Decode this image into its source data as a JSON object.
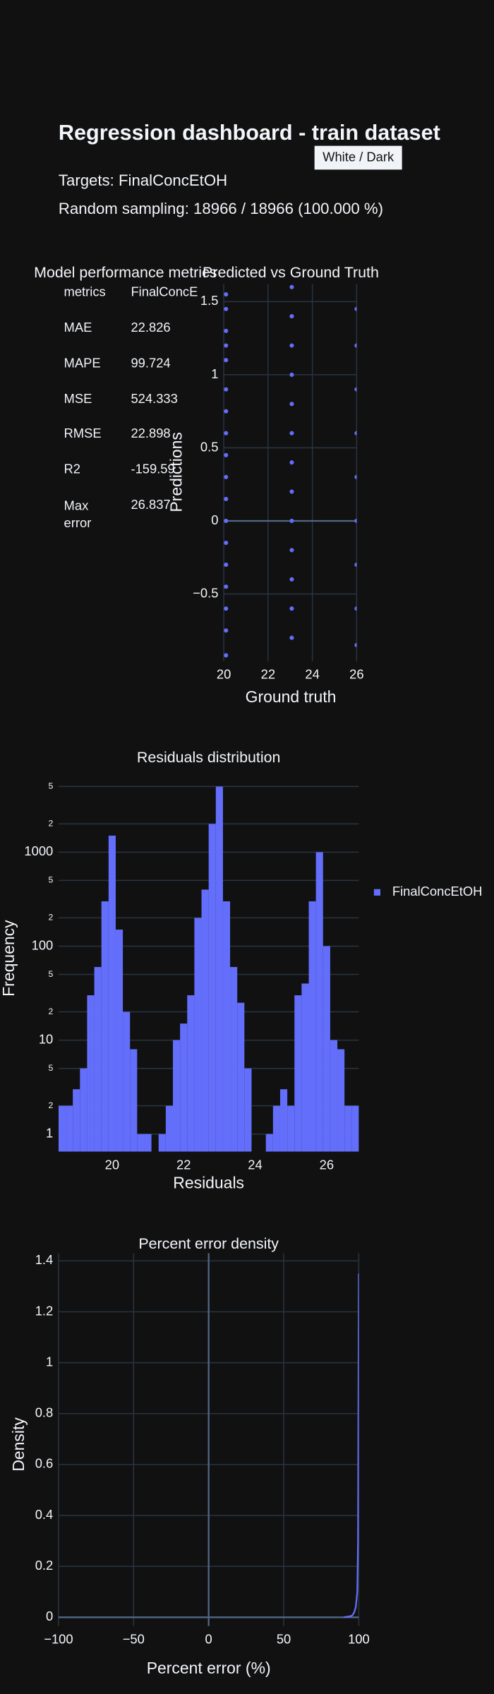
{
  "header": {
    "title": "Regression dashboard - train dataset",
    "button": "White / Dark",
    "targets": "Targets: FinalConcEtOH",
    "sampling": "Random sampling: 18966 / 18966 (100.000 %)"
  },
  "metrics_table": {
    "title": "Model performance metrics",
    "columns": [
      "metrics",
      "FinalConcE"
    ],
    "rows": [
      [
        "MAE",
        22.826
      ],
      [
        "MAPE",
        99.724
      ],
      [
        "MSE",
        524.333
      ],
      [
        "RMSE",
        22.898
      ],
      [
        "R2",
        -159.59
      ],
      [
        "Max error",
        26.837
      ]
    ]
  },
  "chart_data": [
    {
      "type": "scatter",
      "title": "Predicted vs Ground Truth",
      "x_label": "Ground truth",
      "y_label": "Predictions",
      "color": "#636efa",
      "grid": true,
      "x": [
        20.1,
        20.1,
        20.1,
        20.1,
        20.1,
        20.1,
        20.1,
        20.1,
        20.1,
        20.1,
        20.1,
        20.1,
        20.1,
        20.1,
        20.1,
        20.1,
        20.1,
        20.1,
        23.07,
        23.07,
        23.07,
        23.07,
        23.07,
        23.07,
        23.07,
        23.07,
        23.07,
        23.07,
        23.07,
        23.07,
        23.07,
        26.0,
        26.0,
        26.0,
        26.0,
        26.0,
        26.0,
        26.0,
        26.0,
        26.0
      ],
      "values": [
        1.55,
        1.45,
        1.3,
        1.2,
        1.1,
        0.9,
        0.75,
        0.6,
        0.45,
        0.3,
        0.15,
        0.0,
        -0.15,
        -0.3,
        -0.45,
        -0.6,
        -0.75,
        -0.92,
        1.6,
        1.4,
        1.2,
        1.0,
        0.8,
        0.6,
        0.4,
        0.2,
        0.0,
        -0.2,
        -0.4,
        -0.6,
        -0.8,
        1.45,
        1.2,
        0.9,
        0.6,
        0.3,
        0.0,
        -0.3,
        -0.6,
        -0.85
      ],
      "xlim": [
        20,
        26
      ],
      "xticks": [
        20,
        22,
        24,
        26
      ],
      "ylim": [
        -0.96,
        1.62
      ],
      "yticks": [
        {
          "value": -0.5,
          "label": "−0.5"
        },
        0,
        0.5,
        1,
        1.5
      ]
    },
    {
      "type": "histogram",
      "title": "Residuals distribution",
      "x_label": "Residuals",
      "y_label": "Frequency",
      "log_y": true,
      "grid": true,
      "legend": "right",
      "bins": [
        18.5,
        18.7,
        18.9,
        19.1,
        19.3,
        19.5,
        19.7,
        19.9,
        20.1,
        20.3,
        20.5,
        20.7,
        20.9,
        21.1,
        21.3,
        21.5,
        21.7,
        21.9,
        22.1,
        22.3,
        22.5,
        22.7,
        22.9,
        23.1,
        23.3,
        23.5,
        23.7,
        23.9,
        24.1,
        24.3,
        24.5,
        24.7,
        24.9,
        25.1,
        25.3,
        25.5,
        25.7,
        25.9,
        26.1,
        26.3,
        26.5,
        26.7,
        26.9
      ],
      "series": [
        {
          "name": "FinalConcEtOH",
          "color": "#636efa",
          "values": [
            2,
            2,
            3,
            5,
            30,
            60,
            300,
            1500,
            150,
            20,
            8,
            1,
            1,
            0,
            1,
            2,
            10,
            15,
            30,
            200,
            400,
            2000,
            5000,
            300,
            60,
            25,
            5,
            0,
            0,
            1,
            2,
            3,
            2,
            30,
            40,
            300,
            1000,
            100,
            10,
            8,
            2,
            2
          ]
        }
      ],
      "xlim": [
        18.5,
        26.9
      ],
      "xticks": [
        20,
        22,
        24,
        26
      ],
      "ylim": [
        0.65,
        5000
      ],
      "yticks": [
        1,
        2,
        5,
        10,
        {
          "value": 20,
          "label": "2"
        },
        {
          "value": 50,
          "label": "5"
        },
        100,
        {
          "value": 200,
          "label": "2"
        },
        {
          "value": 500,
          "label": "5"
        },
        1000,
        {
          "value": 2000,
          "label": "2"
        },
        {
          "value": 5000,
          "label": "5"
        }
      ]
    },
    {
      "type": "line",
      "title": "Percent error density",
      "x_label": "Percent error (%)",
      "y_label": "Density",
      "color": "#636efa",
      "grid": true,
      "x": [
        90,
        95,
        96,
        97,
        98,
        99,
        99.5,
        100
      ],
      "values": [
        0,
        0.005,
        0.01,
        0.02,
        0.04,
        0.1,
        0.3,
        1.35
      ],
      "xlim": [
        -100,
        100
      ],
      "xticks": [
        {
          "value": -100,
          "label": "−100"
        },
        {
          "value": -50,
          "label": "−50"
        },
        0,
        50,
        100
      ],
      "ylim": [
        -0.034,
        1.43
      ],
      "yticks": [
        0,
        0.2,
        0.4,
        0.6,
        0.8,
        1,
        1.2,
        1.4
      ]
    }
  ]
}
